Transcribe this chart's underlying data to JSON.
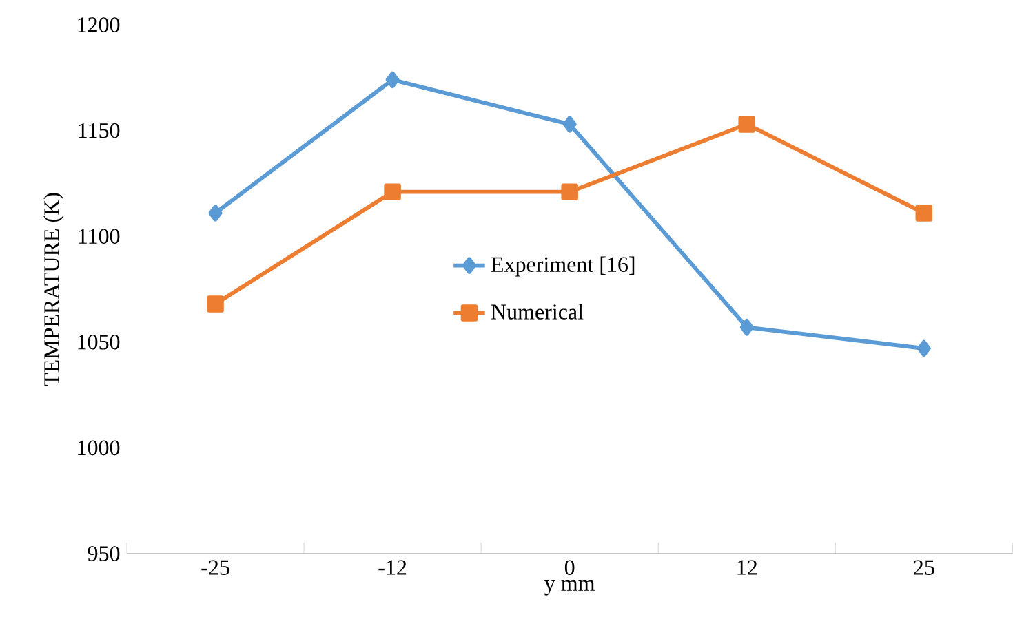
{
  "chart_data": {
    "type": "line",
    "xlabel": "y mm",
    "ylabel": "TEMPERATURE (K)",
    "categories": [
      "-25",
      "-12",
      "0",
      "12",
      "25"
    ],
    "series": [
      {
        "name": "Experiment [16]",
        "color": "#5b9bd5",
        "marker": "diamond",
        "values": [
          1111,
          1174,
          1153,
          1057,
          1047
        ]
      },
      {
        "name": "Numerical",
        "color": "#ed7d31",
        "marker": "square",
        "values": [
          1068,
          1121,
          1121,
          1153,
          1111
        ]
      }
    ],
    "ylim": [
      950,
      1200
    ],
    "yticks": [
      950,
      1000,
      1050,
      1100,
      1150,
      1200
    ],
    "grid": false,
    "legend": "center",
    "line_style": "solid"
  }
}
